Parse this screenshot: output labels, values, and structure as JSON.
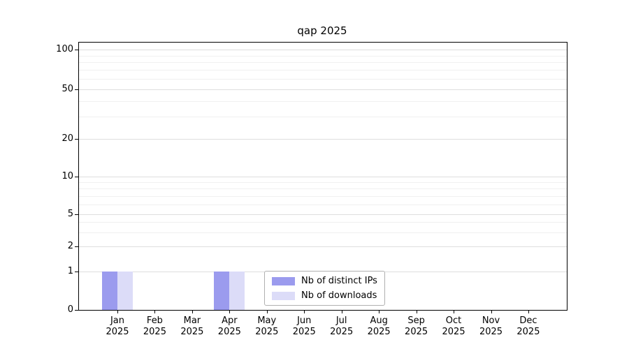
{
  "chart_data": {
    "type": "bar",
    "title": "qap 2025",
    "categories": [
      "Jan",
      "Feb",
      "Mar",
      "Apr",
      "May",
      "Jun",
      "Jul",
      "Aug",
      "Sep",
      "Oct",
      "Nov",
      "Dec"
    ],
    "x_year": "2025",
    "series": [
      {
        "name": "Nb of distinct IPs",
        "color": "#9b9bee",
        "values": [
          1,
          0,
          0,
          1,
          0,
          0,
          0,
          0,
          0,
          0,
          0,
          0
        ]
      },
      {
        "name": "Nb of downloads",
        "color": "#dcdcf8",
        "values": [
          1,
          0,
          0,
          1,
          0,
          0,
          0,
          0,
          0,
          0,
          0,
          0
        ]
      }
    ],
    "y_ticks": [
      0,
      1,
      2,
      5,
      10,
      20,
      50,
      100
    ],
    "ylim": [
      0,
      100
    ],
    "y_scale": "symlog",
    "grid": "horizontal",
    "legend_position": "lower-center",
    "colors": {
      "background": "#ffffff",
      "axis": "#000000",
      "grid_major": "#dedede",
      "grid_minor": "#f0f0f0",
      "legend_border": "#b0b0b0"
    }
  }
}
